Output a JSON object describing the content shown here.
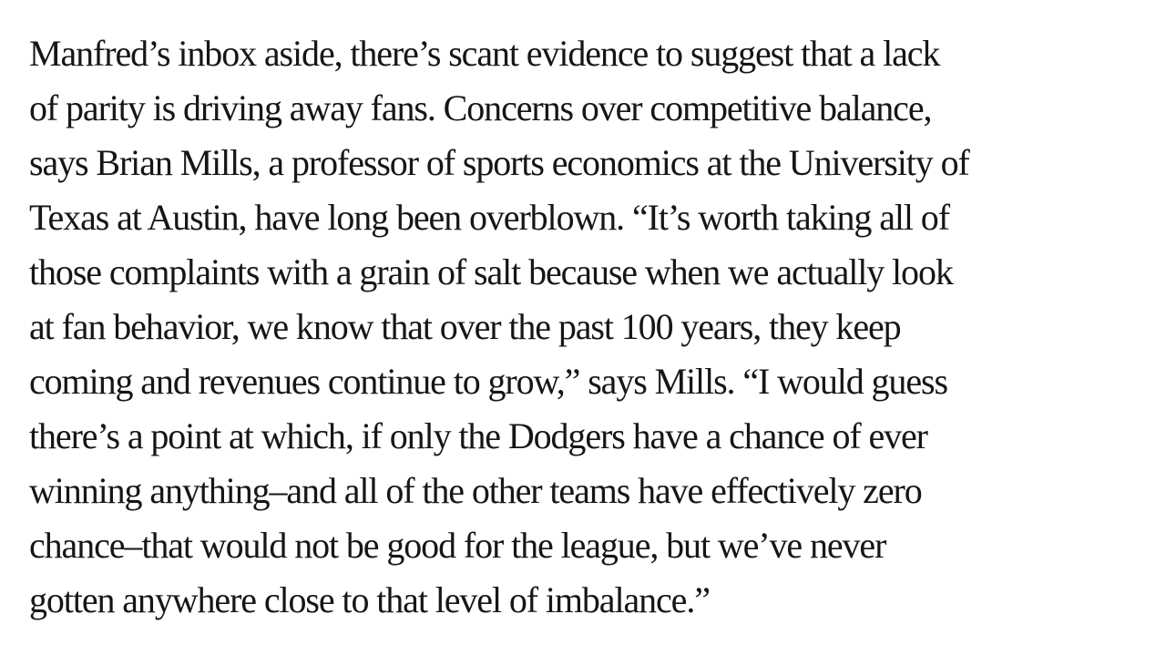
{
  "article": {
    "background_color": "#ffffff",
    "text_color": "#161616",
    "paragraph_lines": [
      "Manfred’s inbox aside, there’s scant evidence to suggest that a lack",
      "of parity is driving away fans. Concerns over competitive balance,",
      "says Brian Mills, a professor of sports economics at the University of",
      "Texas at Austin, have long been overblown. “It’s worth taking all of",
      "those complaints with a grain of salt because when we actually look",
      "at fan behavior, we know that over the past 100 years, they keep",
      "coming and revenues continue to grow,” says Mills. “I would guess",
      "there’s a point at which, if only the Dodgers have a chance of ever",
      "winning anything–and all of the other teams have effectively zero",
      "chance–that would not be good for the league, but we’ve never",
      "gotten anywhere close to that level of imbalance.”"
    ]
  }
}
